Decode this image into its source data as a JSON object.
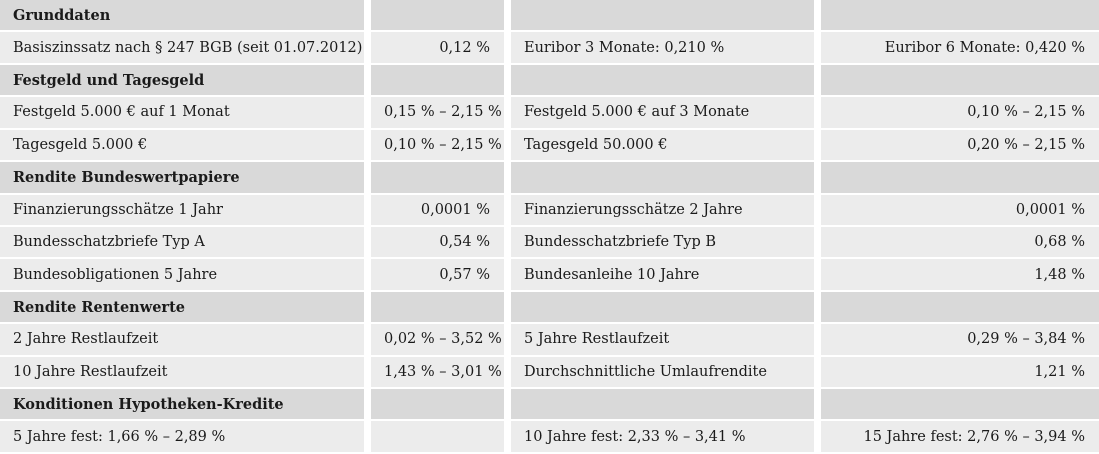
{
  "table": {
    "sections": [
      {
        "heading": "Grunddaten",
        "rows": [
          [
            "Basiszinssatz nach § 247 BGB (seit 01.07.2012)",
            "0,12 %",
            "Euribor 3 Monate: 0,210 %",
            "Euribor 6 Monate: 0,420 %"
          ]
        ]
      },
      {
        "heading": "Festgeld und Tagesgeld",
        "rows": [
          [
            "Festgeld 5.000 € auf 1 Monat",
            "0,15 % – 2,15 %",
            "Festgeld 5.000 € auf 3 Monate",
            "0,10 % – 2,15 %"
          ],
          [
            "Tagesgeld 5.000 €",
            "0,10 % – 2,15 %",
            "Tagesgeld 50.000 €",
            "0,20 % – 2,15 %"
          ]
        ]
      },
      {
        "heading": "Rendite Bundeswertpapiere",
        "rows": [
          [
            "Finanzierungsschätze 1 Jahr",
            "0,0001 %",
            "Finanzierungsschätze 2 Jahre",
            "0,0001 %"
          ],
          [
            "Bundesschatzbriefe Typ A",
            "0,54 %",
            "Bundesschatzbriefe Typ B",
            "0,68 %"
          ],
          [
            "Bundesobligationen 5 Jahre",
            "0,57 %",
            "Bundesanleihe 10 Jahre",
            "1,48 %"
          ]
        ]
      },
      {
        "heading": "Rendite Rentenwerte",
        "rows": [
          [
            "2 Jahre Restlaufzeit",
            "0,02 % – 3,52 %",
            "5 Jahre Restlaufzeit",
            "0,29 % – 3,84 %"
          ],
          [
            "10 Jahre Restlaufzeit",
            "1,43 % – 3,01 %",
            "Durchschnittliche Umlaufrendite",
            "1,21 %"
          ]
        ]
      },
      {
        "heading": "Konditionen Hypotheken-Kredite",
        "rows": [
          [
            "5 Jahre fest: 1,66 % – 2,89 %",
            "",
            "10 Jahre fest: 2,33 % – 3,41 %",
            "15 Jahre fest: 2,76 % – 3,94 %"
          ]
        ]
      }
    ]
  }
}
